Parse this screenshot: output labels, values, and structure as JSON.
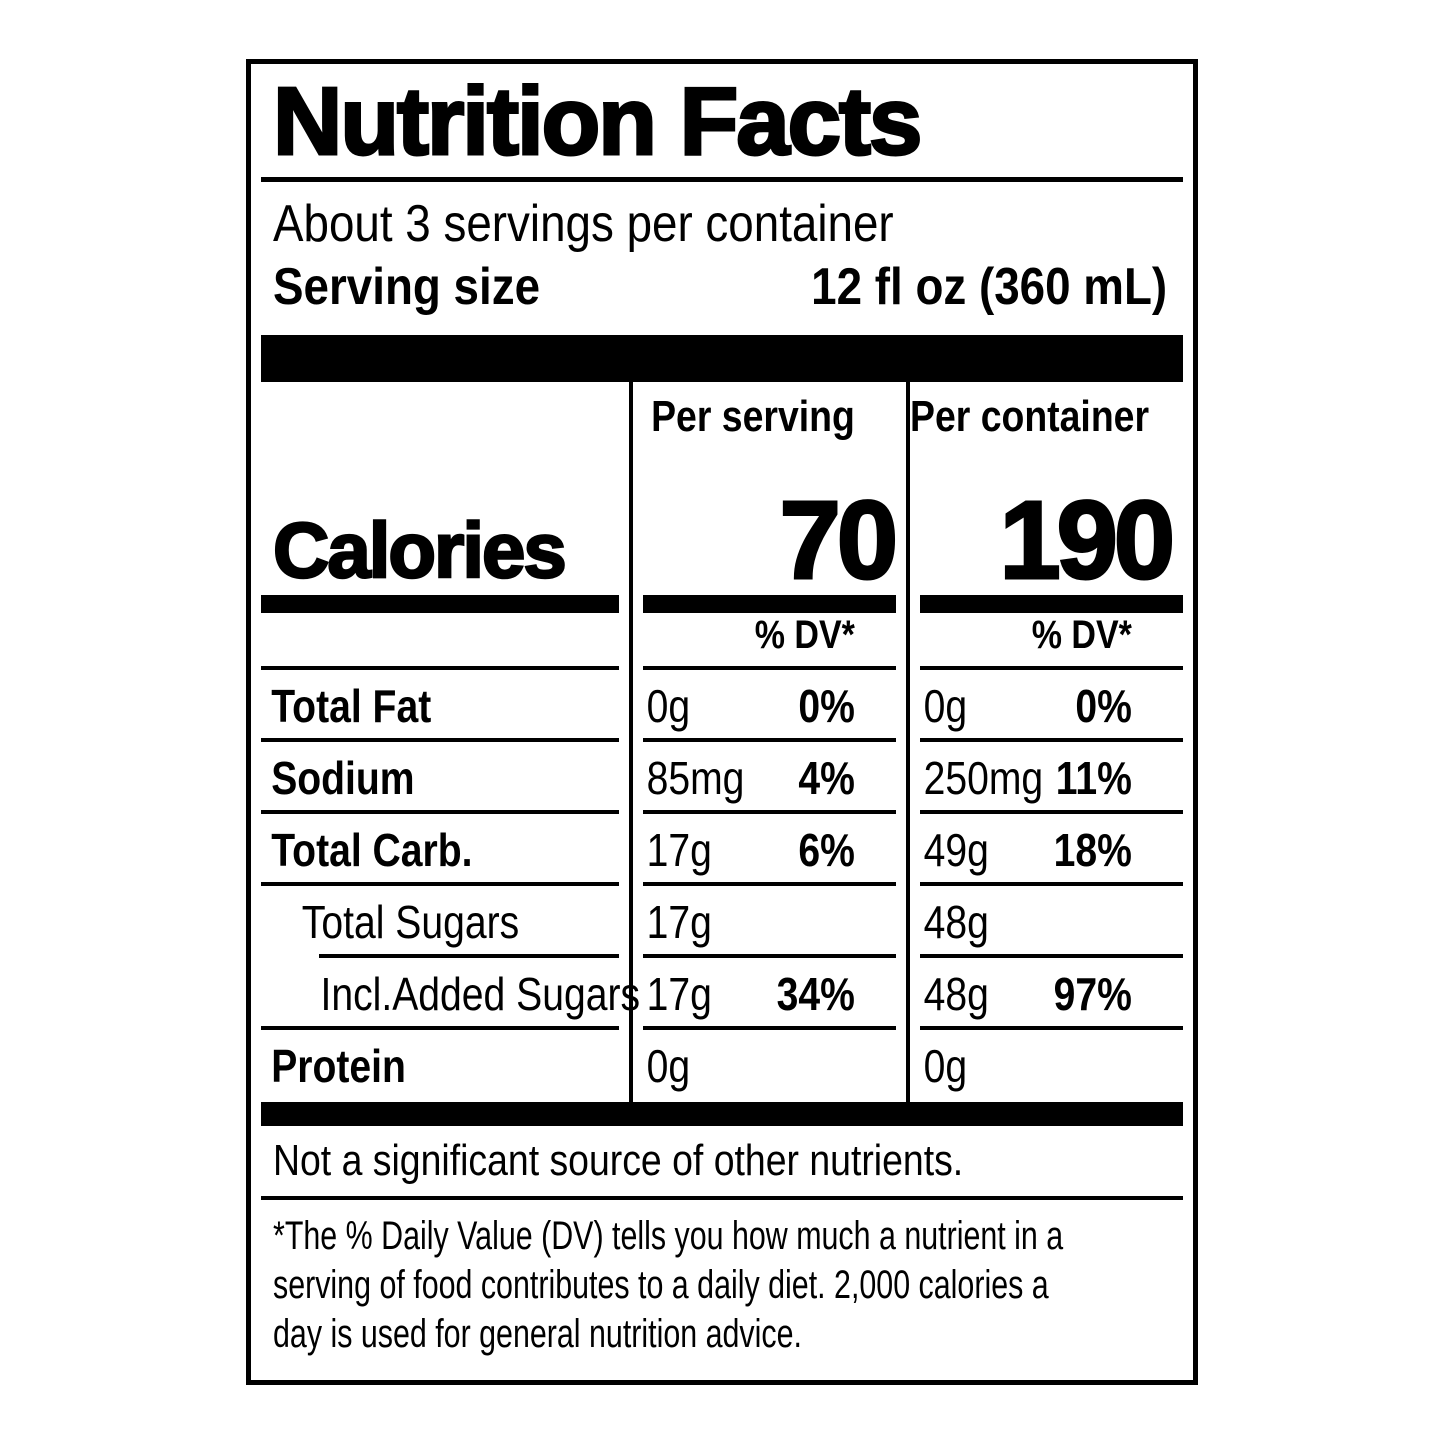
{
  "label": {
    "title": "Nutrition Facts",
    "servings_per_container": "About 3 servings per container",
    "serving_size_label": "Serving size",
    "serving_size_value": "12 fl oz (360 mL)",
    "columns": {
      "per_serving": "Per serving",
      "per_container": "Per container"
    },
    "calories": {
      "label": "Calories",
      "per_serving": "70",
      "per_container": "190"
    },
    "dv_header": "% DV*",
    "rows": [
      {
        "name": "Total Fat",
        "ps_amount": "0g",
        "ps_dv": "0%",
        "pc_amount": "0g",
        "pc_dv": "0%"
      },
      {
        "name": "Sodium",
        "ps_amount": "85mg",
        "ps_dv": "4%",
        "pc_amount": "250mg",
        "pc_dv": "11%"
      },
      {
        "name": "Total Carb.",
        "ps_amount": "17g",
        "ps_dv": "6%",
        "pc_amount": "49g",
        "pc_dv": "18%"
      },
      {
        "name": "Total Sugars",
        "ps_amount": "17g",
        "ps_dv": "",
        "pc_amount": "48g",
        "pc_dv": ""
      },
      {
        "name": "Incl.Added Sugars",
        "ps_amount": "17g",
        "ps_dv": "34%",
        "pc_amount": "48g",
        "pc_dv": "97%"
      },
      {
        "name": "Protein",
        "ps_amount": "0g",
        "ps_dv": "",
        "pc_amount": "0g",
        "pc_dv": ""
      }
    ],
    "note": "Not a significant source of other nutrients.",
    "footnote_lines": [
      "*The % Daily Value (DV) tells you how much a nutrient in a",
      "serving of food contributes to a daily diet. 2,000 calories a",
      "day is used for general nutrition advice."
    ],
    "colors": {
      "ink": "#000000",
      "paper": "#ffffff"
    }
  }
}
